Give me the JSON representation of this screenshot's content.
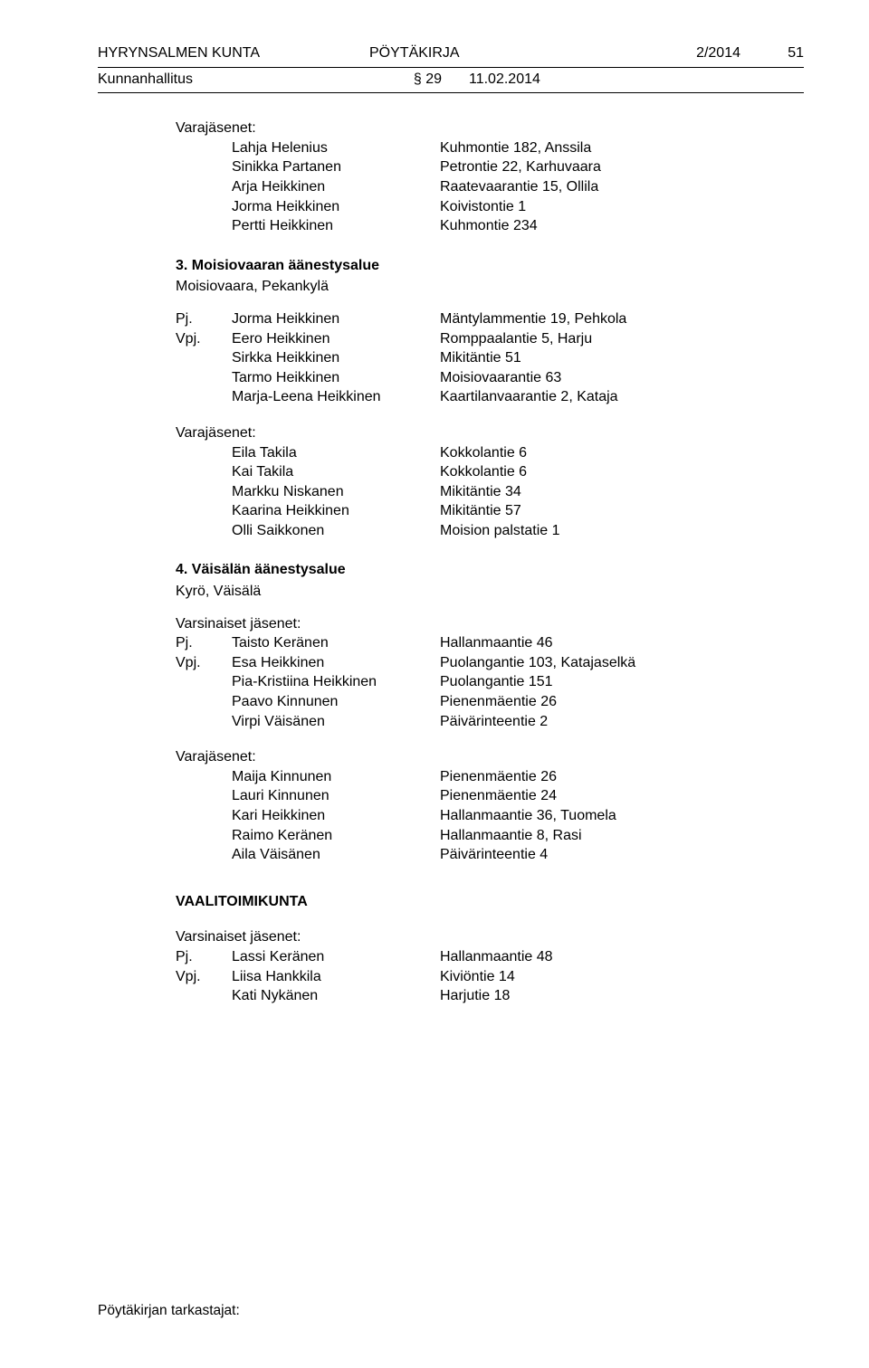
{
  "header": {
    "org": "HYRYNSALMEN KUNTA",
    "doc": "PÖYTÄKIRJA",
    "num": "2/2014",
    "page": "51"
  },
  "subheader": {
    "body": "Kunnanhallitus",
    "section": "§ 29",
    "date": "11.02.2014"
  },
  "blocks": {
    "vara_top_label": "Varajäsenet:",
    "vara_top": [
      {
        "name": "Lahja Helenius",
        "addr": "Kuhmontie 182, Anssila"
      },
      {
        "name": "Sinikka Partanen",
        "addr": "Petrontie 22, Karhuvaara"
      },
      {
        "name": "Arja Heikkinen",
        "addr": "Raatevaarantie 15, Ollila"
      },
      {
        "name": "Jorma Heikkinen",
        "addr": "Koivistontie 1"
      },
      {
        "name": "Pertti Heikkinen",
        "addr": "Kuhmontie 234"
      }
    ],
    "sec3_title": "3. Moisiovaaran äänestysalue",
    "sec3_sub": "Moisiovaara, Pekankylä",
    "sec3_members": [
      {
        "role": "Pj.",
        "name": "Jorma Heikkinen",
        "addr": "Mäntylammentie 19, Pehkola"
      },
      {
        "role": "Vpj.",
        "name": "Eero Heikkinen",
        "addr": "Romppaalantie 5, Harju"
      },
      {
        "role": "",
        "name": "Sirkka Heikkinen",
        "addr": "Mikitäntie 51"
      },
      {
        "role": "",
        "name": "Tarmo Heikkinen",
        "addr": "Moisiovaarantie 63"
      },
      {
        "role": "",
        "name": "Marja-Leena Heikkinen",
        "addr": "Kaartilanvaarantie 2, Kataja"
      }
    ],
    "sec3_vara_label": "Varajäsenet:",
    "sec3_vara": [
      {
        "name": "Eila Takila",
        "addr": "Kokkolantie 6"
      },
      {
        "name": "Kai Takila",
        "addr": "Kokkolantie 6"
      },
      {
        "name": "Markku Niskanen",
        "addr": "Mikitäntie 34"
      },
      {
        "name": "Kaarina Heikkinen",
        "addr": "Mikitäntie 57"
      },
      {
        "name": "Olli Saikkonen",
        "addr": "Moision palstatie 1"
      }
    ],
    "sec4_title": "4. Väisälän äänestysalue",
    "sec4_sub": "Kyrö, Väisälä",
    "sec4_vars_label": "Varsinaiset jäsenet:",
    "sec4_members": [
      {
        "role": "Pj.",
        "name": "Taisto Keränen",
        "addr": "Hallanmaantie 46"
      },
      {
        "role": "Vpj.",
        "name": "Esa Heikkinen",
        "addr": "Puolangantie 103, Katajaselkä"
      },
      {
        "role": "",
        "name": "Pia-Kristiina Heikkinen",
        "addr": "Puolangantie 151"
      },
      {
        "role": "",
        "name": "Paavo Kinnunen",
        "addr": "Pienenmäentie 26"
      },
      {
        "role": "",
        "name": "Virpi Väisänen",
        "addr": "Päivärinteentie 2"
      }
    ],
    "sec4_vara_label": "Varajäsenet:",
    "sec4_vara": [
      {
        "name": "Maija Kinnunen",
        "addr": "Pienenmäentie 26"
      },
      {
        "name": "Lauri Kinnunen",
        "addr": "Pienenmäentie 24"
      },
      {
        "name": "Kari Heikkinen",
        "addr": "Hallanmaantie 36, Tuomela"
      },
      {
        "name": "Raimo Keränen",
        "addr": "Hallanmaantie 8, Rasi"
      },
      {
        "name": "Aila Väisänen",
        "addr": "Päivärinteentie 4"
      }
    ],
    "vaali_title": "VAALITOIMIKUNTA",
    "vaali_vars_label": "Varsinaiset jäsenet:",
    "vaali_members": [
      {
        "role": "Pj.",
        "name": "Lassi Keränen",
        "addr": "Hallanmaantie 48"
      },
      {
        "role": "Vpj.",
        "name": "Liisa Hankkila",
        "addr": "Kiviöntie 14"
      },
      {
        "role": "",
        "name": "Kati Nykänen",
        "addr": "Harjutie 18"
      }
    ]
  },
  "footer": "Pöytäkirjan tarkastajat:"
}
